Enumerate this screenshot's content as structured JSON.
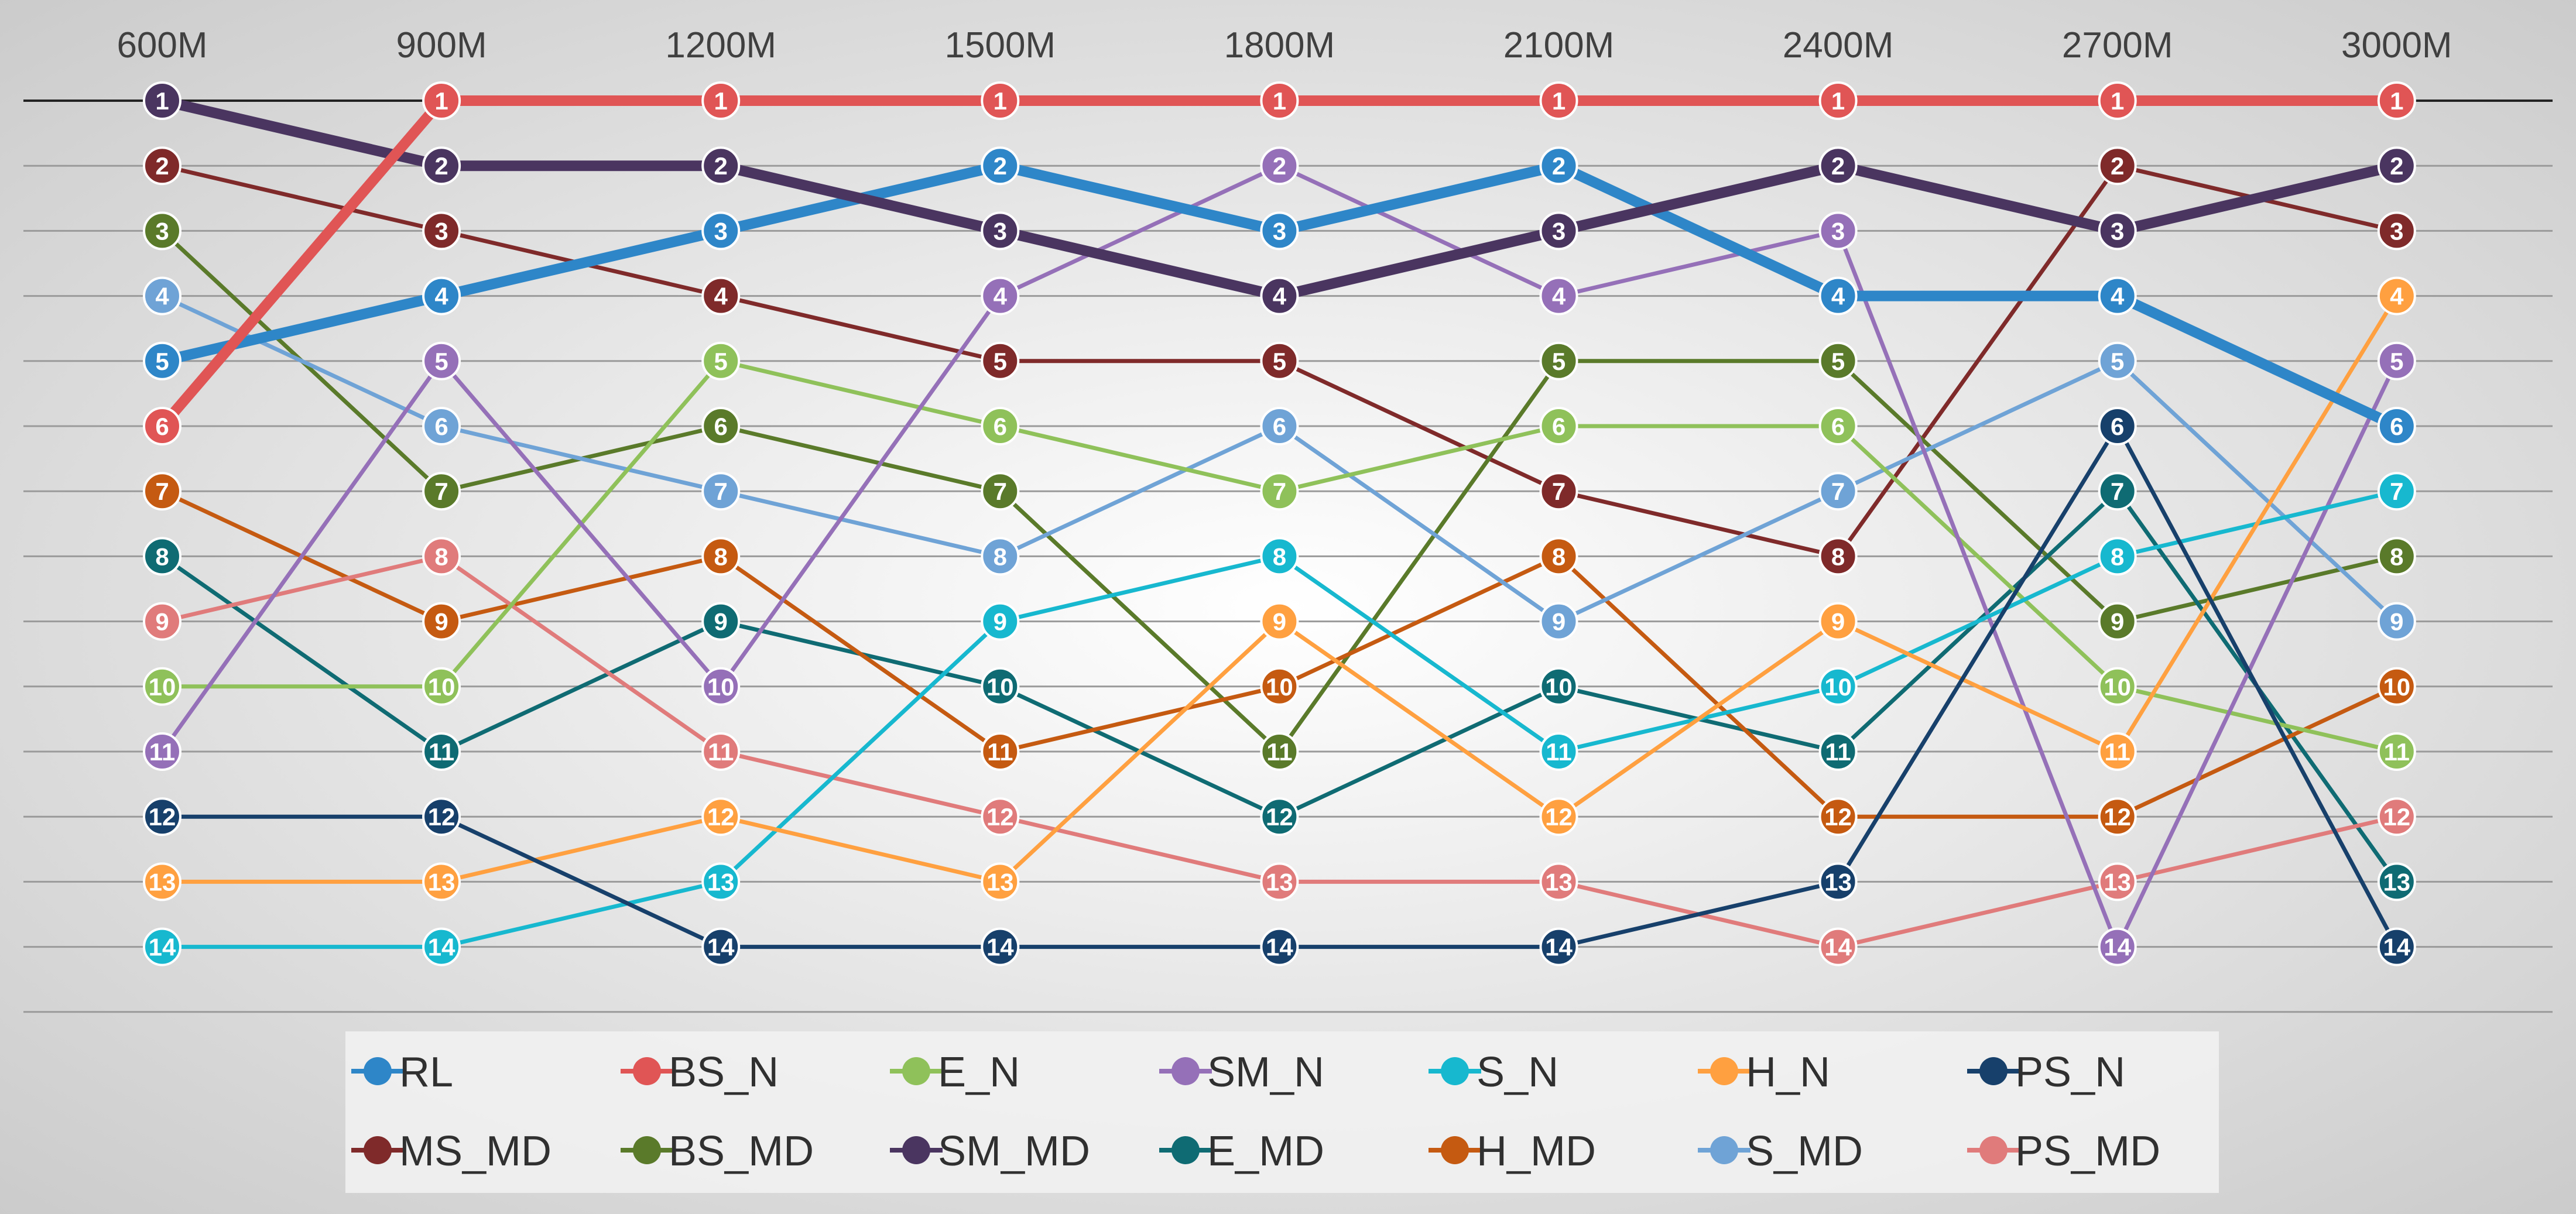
{
  "chart_data": {
    "type": "line",
    "subtype": "bump",
    "categories": [
      "600M",
      "900M",
      "1200M",
      "1500M",
      "1800M",
      "2100M",
      "2400M",
      "2700M",
      "3000M"
    ],
    "ylim": [
      1,
      14
    ],
    "y_reversed": true,
    "grid": true,
    "legend_position": "bottom",
    "series": [
      {
        "name": "MS_MD",
        "color": "#7f2a2a",
        "width": "normal",
        "values": [
          2,
          3,
          4,
          5,
          5,
          7,
          8,
          2,
          3
        ]
      },
      {
        "name": "BS_MD",
        "color": "#5a7a2a",
        "width": "normal",
        "values": [
          3,
          7,
          6,
          7,
          11,
          5,
          5,
          9,
          8
        ]
      },
      {
        "name": "E_MD",
        "color": "#0f6b73",
        "width": "normal",
        "values": [
          8,
          11,
          9,
          10,
          12,
          10,
          11,
          7,
          13
        ]
      },
      {
        "name": "H_MD",
        "color": "#c55a11",
        "width": "normal",
        "values": [
          7,
          9,
          8,
          11,
          10,
          8,
          12,
          12,
          10
        ]
      },
      {
        "name": "S_MD",
        "color": "#6fa3d6",
        "width": "normal",
        "values": [
          4,
          6,
          7,
          8,
          6,
          9,
          7,
          5,
          9
        ]
      },
      {
        "name": "PS_MD",
        "color": "#e07b7b",
        "width": "normal",
        "values": [
          9,
          8,
          11,
          12,
          13,
          13,
          14,
          13,
          12
        ]
      },
      {
        "name": "E_N",
        "color": "#8fc15a",
        "width": "normal",
        "values": [
          10,
          10,
          5,
          6,
          7,
          6,
          6,
          10,
          11
        ]
      },
      {
        "name": "SM_N",
        "color": "#9570b8",
        "width": "normal",
        "values": [
          11,
          5,
          10,
          4,
          2,
          4,
          3,
          14,
          5
        ]
      },
      {
        "name": "S_N",
        "color": "#17b8cf",
        "width": "normal",
        "values": [
          14,
          14,
          13,
          9,
          8,
          11,
          10,
          8,
          7
        ]
      },
      {
        "name": "H_N",
        "color": "#ffa040",
        "width": "normal",
        "values": [
          13,
          13,
          12,
          13,
          9,
          12,
          9,
          11,
          4
        ]
      },
      {
        "name": "PS_N",
        "color": "#17406b",
        "width": "normal",
        "values": [
          12,
          12,
          14,
          14,
          14,
          14,
          13,
          6,
          14
        ]
      },
      {
        "name": "RL",
        "color": "#2e86c8",
        "width": "thick",
        "values": [
          5,
          4,
          3,
          2,
          3,
          2,
          4,
          4,
          6
        ]
      },
      {
        "name": "SM_MD",
        "color": "#4a3560",
        "width": "thick",
        "values": [
          1,
          2,
          2,
          3,
          4,
          3,
          2,
          3,
          2
        ]
      },
      {
        "name": "BS_N",
        "color": "#e05555",
        "width": "thick",
        "values": [
          6,
          1,
          1,
          1,
          1,
          1,
          1,
          1,
          1
        ]
      }
    ],
    "legend": [
      [
        "RL",
        "BS_N",
        "E_N",
        "SM_N",
        "S_N",
        "H_N",
        "PS_N"
      ],
      [
        "MS_MD",
        "BS_MD",
        "SM_MD",
        "E_MD",
        "H_MD",
        "S_MD",
        "PS_MD"
      ]
    ]
  }
}
